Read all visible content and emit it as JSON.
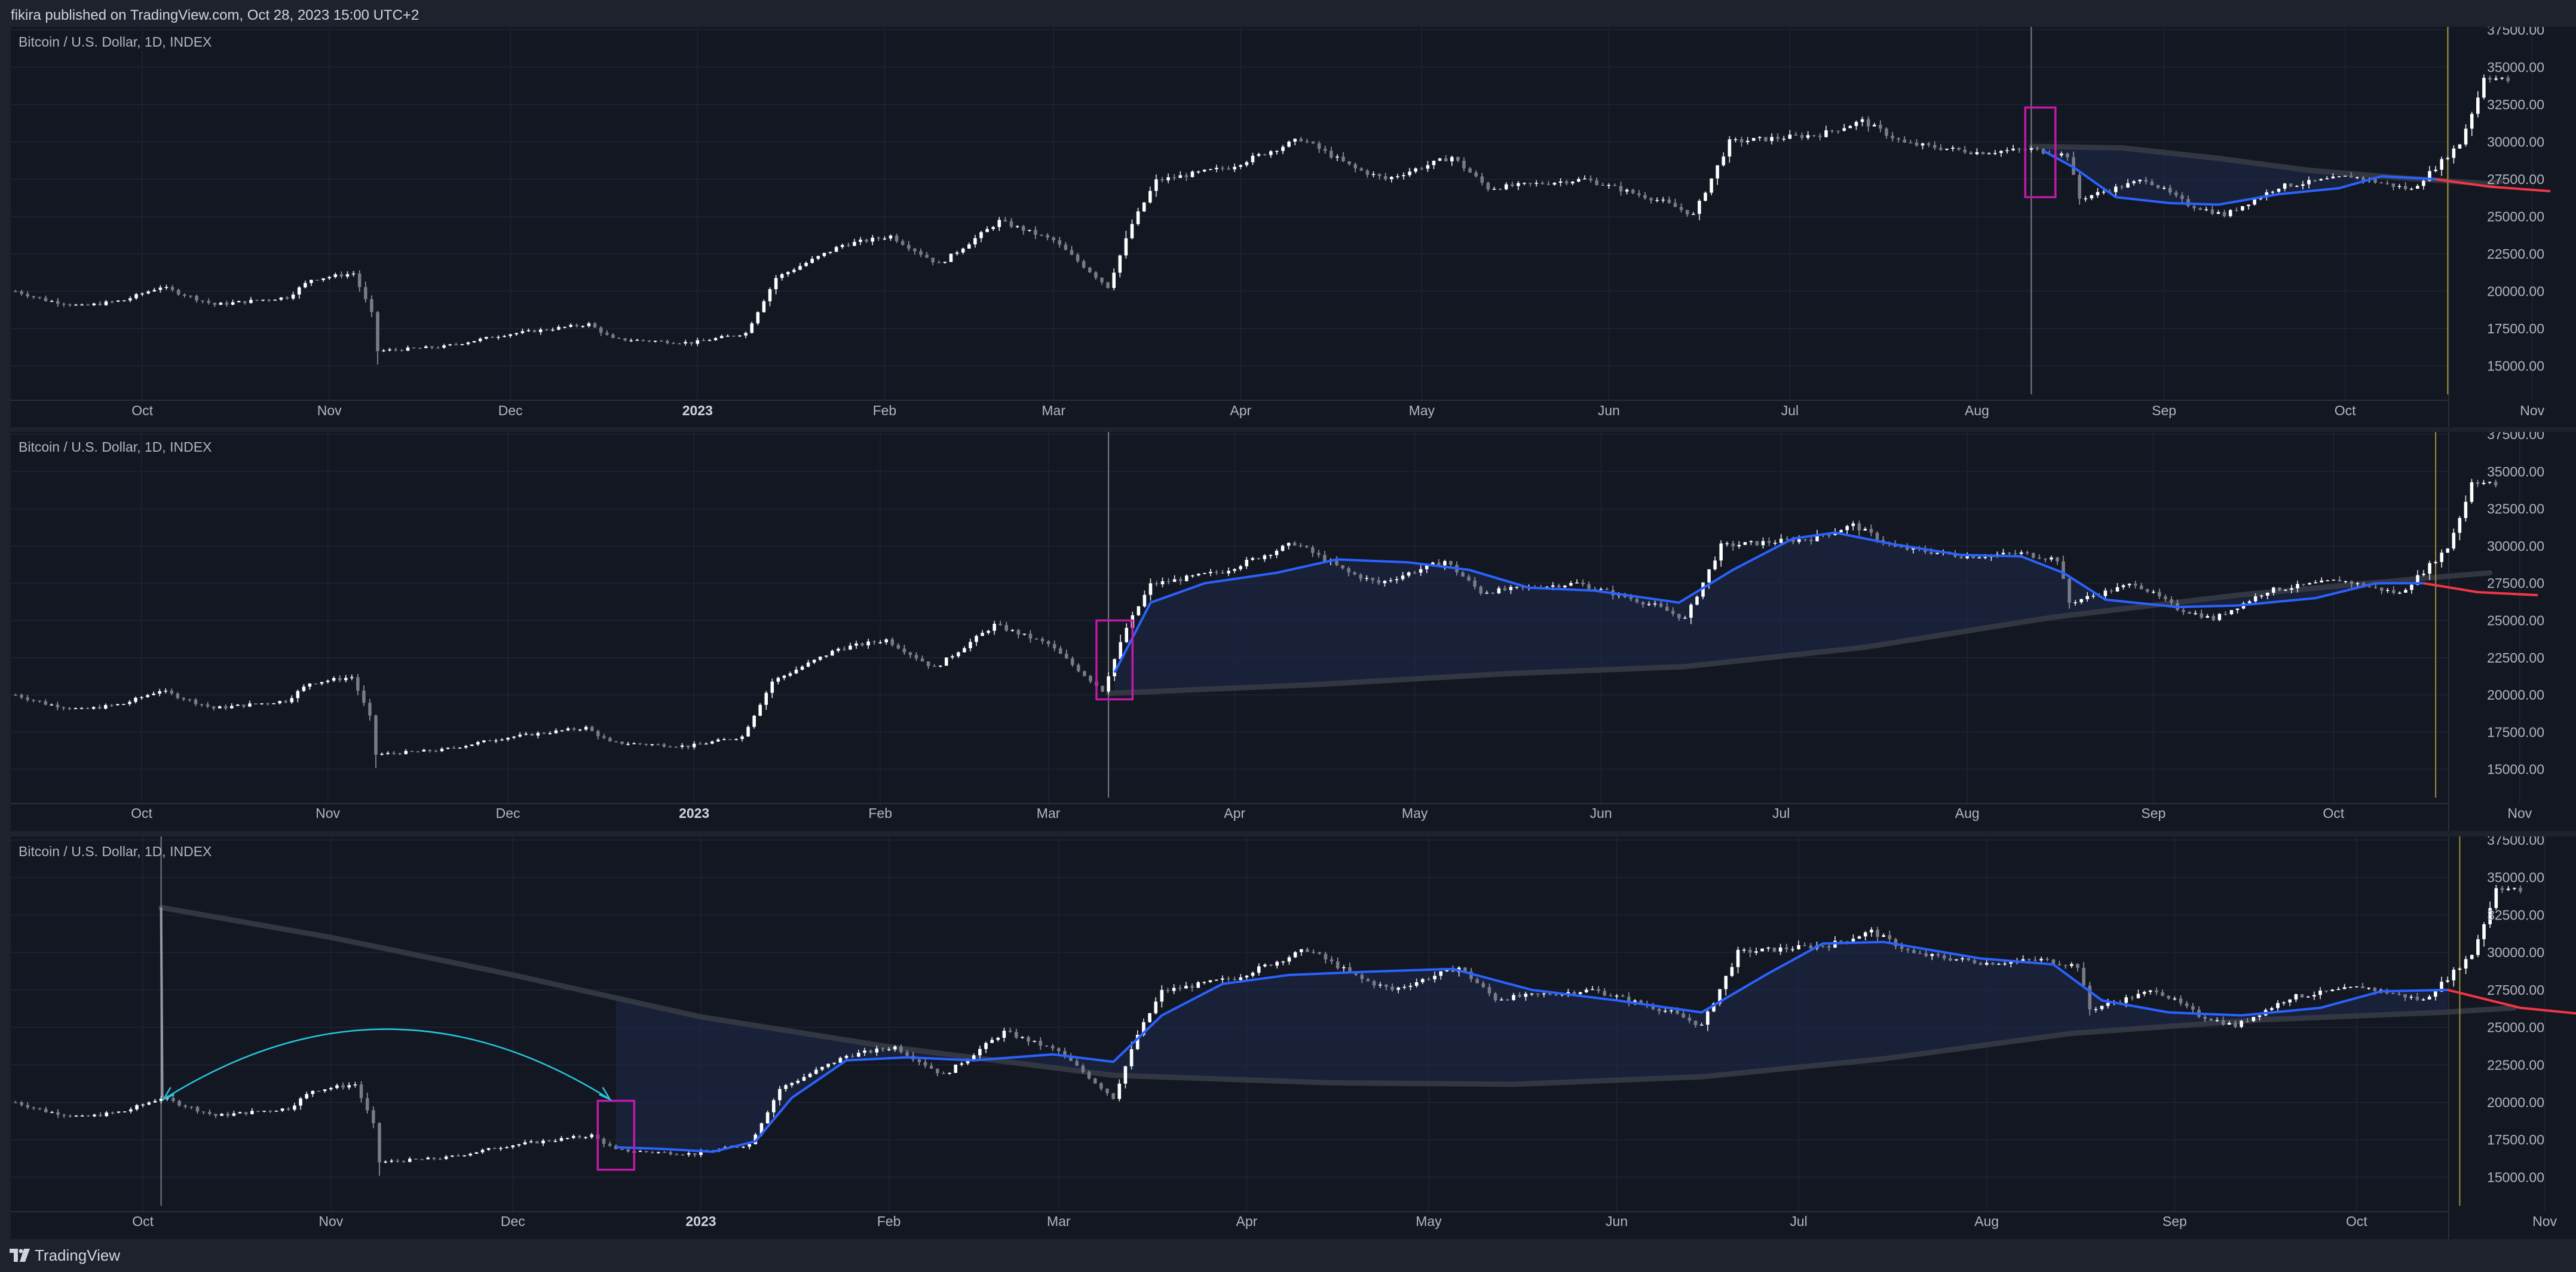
{
  "header": {
    "published": "fikira published on TradingView.com, Oct 28, 2023 15:00 UTC+2"
  },
  "footer": {
    "brand": "TradingView",
    "logo_icon": "tradingview-logo-icon"
  },
  "colors": {
    "background": "#131722",
    "frame": "#1e222d",
    "candle": "#d1d4dc",
    "ma_blue": "#2962ff",
    "projection_red": "#f23645",
    "long_ma": "#363a45",
    "fill": "#1f2a4a",
    "marker_box": "#c219a8",
    "start_line": "#787b86",
    "end_line": "#9b9137",
    "arrow": "#26c6da"
  },
  "chart_data": [
    {
      "type": "candlestick",
      "title": "Bitcoin / U.S. Dollar, 1D, INDEX",
      "x_range": [
        "2022-09-10",
        "2023-11-08"
      ],
      "ylim": [
        13500,
        37500
      ],
      "y_ticks": [
        "37500.00",
        "35000.00",
        "32500.00",
        "30000.00",
        "27500.00",
        "25000.00",
        "22500.00",
        "20000.00",
        "17500.00",
        "15000.00"
      ],
      "x_labels": [
        "Oct",
        "Nov",
        "Dec",
        "2023",
        "Feb",
        "Mar",
        "Apr",
        "May",
        "Jun",
        "Jul",
        "Aug",
        "Sep",
        "Oct",
        "Nov"
      ],
      "anchor_date": "2023-08-10",
      "highlight_box": {
        "start": "2023-08-09",
        "end": "2023-08-14",
        "low": 26300,
        "high": 32300
      },
      "end_line_date": "2023-10-18",
      "series": [
        {
          "name": "",
          "points": [
            [
              "2023-08-12",
              29400
            ],
            [
              "2023-08-17",
              28300
            ],
            [
              "2023-08-24",
              26300
            ],
            [
              "2023-09-02",
              25900
            ],
            [
              "2023-09-10",
              25800
            ],
            [
              "2023-09-20",
              26500
            ],
            [
              "2023-09-30",
              26900
            ],
            [
              "2023-10-07",
              27700
            ],
            [
              "2023-10-16",
              27500
            ]
          ]
        },
        {
          "name": "",
          "points": [
            [
              "2023-10-16",
              27500
            ],
            [
              "2023-10-25",
              27000
            ],
            [
              "2023-11-04",
              26700
            ]
          ]
        },
        {
          "name": "",
          "points": [
            [
              "2023-08-10",
              29700
            ],
            [
              "2023-08-25",
              29600
            ],
            [
              "2023-09-10",
              28900
            ],
            [
              "2023-09-25",
              28100
            ],
            [
              "2023-10-10",
              27600
            ],
            [
              "2023-10-25",
              27200
            ],
            [
              "2023-10-27",
              27400
            ]
          ]
        }
      ]
    },
    {
      "type": "candlestick",
      "title": "Bitcoin / U.S. Dollar, 1D, INDEX",
      "x_range": [
        "2022-09-10",
        "2023-11-08"
      ],
      "ylim": [
        13500,
        37500
      ],
      "y_ticks": [
        "37500.00",
        "35000.00",
        "32500.00",
        "30000.00",
        "27500.00",
        "25000.00",
        "22500.00",
        "20000.00",
        "17500.00",
        "15000.00"
      ],
      "x_labels": [
        "Oct",
        "Nov",
        "Dec",
        "2023",
        "Feb",
        "Mar",
        "Apr",
        "May",
        "Jun",
        "Jul",
        "Aug",
        "Sep",
        "Oct",
        "Nov"
      ],
      "anchor_date": "2023-03-11",
      "highlight_box": {
        "start": "2023-03-09",
        "end": "2023-03-15",
        "low": 19700,
        "high": 25000
      },
      "end_line_date": "2023-10-18",
      "series": [
        {
          "name": "",
          "points": [
            [
              "2023-03-12",
              21500
            ],
            [
              "2023-03-18",
              26200
            ],
            [
              "2023-03-27",
              27500
            ],
            [
              "2023-04-08",
              28200
            ],
            [
              "2023-04-18",
              29100
            ],
            [
              "2023-04-30",
              28900
            ],
            [
              "2023-05-10",
              28400
            ],
            [
              "2023-05-20",
              27200
            ],
            [
              "2023-05-31",
              27000
            ],
            [
              "2023-06-14",
              26200
            ],
            [
              "2023-06-23",
              28400
            ],
            [
              "2023-07-03",
              30500
            ],
            [
              "2023-07-10",
              30900
            ],
            [
              "2023-07-20",
              30100
            ],
            [
              "2023-07-31",
              29400
            ],
            [
              "2023-08-10",
              29300
            ],
            [
              "2023-08-17",
              28200
            ],
            [
              "2023-08-24",
              26400
            ],
            [
              "2023-09-05",
              25900
            ],
            [
              "2023-09-15",
              26000
            ],
            [
              "2023-09-28",
              26500
            ],
            [
              "2023-10-08",
              27500
            ],
            [
              "2023-10-16",
              27500
            ]
          ]
        },
        {
          "name": "",
          "points": [
            [
              "2023-10-16",
              27500
            ],
            [
              "2023-10-25",
              26900
            ],
            [
              "2023-11-04",
              26700
            ]
          ]
        },
        {
          "name": "",
          "points": [
            [
              "2023-03-11",
              20100
            ],
            [
              "2023-04-15",
              20700
            ],
            [
              "2023-05-15",
              21400
            ],
            [
              "2023-06-15",
              21900
            ],
            [
              "2023-07-15",
              23200
            ],
            [
              "2023-08-15",
              25200
            ],
            [
              "2023-09-15",
              26700
            ],
            [
              "2023-10-15",
              27800
            ],
            [
              "2023-10-27",
              28200
            ]
          ]
        }
      ]
    },
    {
      "type": "candlestick",
      "title": "Bitcoin / U.S. Dollar, 1D, INDEX",
      "x_range": [
        "2022-09-10",
        "2023-11-08"
      ],
      "ylim": [
        13500,
        37500
      ],
      "y_ticks": [
        "37500.00",
        "35000.00",
        "32500.00",
        "30000.00",
        "27500.00",
        "25000.00",
        "22500.00",
        "20000.00",
        "17500.00",
        "15000.00"
      ],
      "x_labels": [
        "Oct",
        "Nov",
        "Dec",
        "2023",
        "Feb",
        "Mar",
        "Apr",
        "May",
        "Jun",
        "Jul",
        "Aug",
        "Sep",
        "Oct",
        "Nov"
      ],
      "anchor_date": "2022-10-04",
      "highlight_box": {
        "start": "2022-12-15",
        "end": "2022-12-21",
        "low": 15500,
        "high": 20100
      },
      "end_line_date": "2023-10-18",
      "arrow": {
        "from": [
          "2022-10-04",
          20200
        ],
        "to": [
          "2022-12-17",
          20200
        ],
        "peak": 25000
      },
      "series": [
        {
          "name": "",
          "points": [
            [
              "2022-12-18",
              17000
            ],
            [
              "2022-12-25",
              16900
            ],
            [
              "2023-01-03",
              16700
            ],
            [
              "2023-01-10",
              17400
            ],
            [
              "2023-01-16",
              20300
            ],
            [
              "2023-01-25",
              22800
            ],
            [
              "2023-02-04",
              23000
            ],
            [
              "2023-02-15",
              22800
            ],
            [
              "2023-02-28",
              23200
            ],
            [
              "2023-03-10",
              22700
            ],
            [
              "2023-03-18",
              25800
            ],
            [
              "2023-03-28",
              27900
            ],
            [
              "2023-04-08",
              28500
            ],
            [
              "2023-04-20",
              28700
            ],
            [
              "2023-05-05",
              28900
            ],
            [
              "2023-05-18",
              27500
            ],
            [
              "2023-06-01",
              26800
            ],
            [
              "2023-06-15",
              26000
            ],
            [
              "2023-06-26",
              28600
            ],
            [
              "2023-07-05",
              30600
            ],
            [
              "2023-07-15",
              30700
            ],
            [
              "2023-07-31",
              29600
            ],
            [
              "2023-08-12",
              29200
            ],
            [
              "2023-08-20",
              26800
            ],
            [
              "2023-08-31",
              26000
            ],
            [
              "2023-09-12",
              25800
            ],
            [
              "2023-09-25",
              26300
            ],
            [
              "2023-10-05",
              27400
            ],
            [
              "2023-10-16",
              27500
            ]
          ]
        },
        {
          "name": "",
          "points": [
            [
              "2023-10-16",
              27500
            ],
            [
              "2023-10-28",
              26300
            ],
            [
              "2023-11-07",
              25900
            ]
          ]
        },
        {
          "name": "",
          "points": [
            [
              "2022-10-04",
              33000
            ],
            [
              "2022-11-01",
              31000
            ],
            [
              "2022-12-01",
              28500
            ],
            [
              "2023-01-01",
              25700
            ],
            [
              "2023-02-01",
              23700
            ],
            [
              "2023-03-10",
              21800
            ],
            [
              "2023-04-15",
              21300
            ],
            [
              "2023-05-15",
              21200
            ],
            [
              "2023-06-15",
              21700
            ],
            [
              "2023-07-15",
              22900
            ],
            [
              "2023-08-15",
              24600
            ],
            [
              "2023-09-15",
              25500
            ],
            [
              "2023-10-15",
              26000
            ],
            [
              "2023-10-27",
              26300
            ]
          ]
        }
      ]
    }
  ]
}
